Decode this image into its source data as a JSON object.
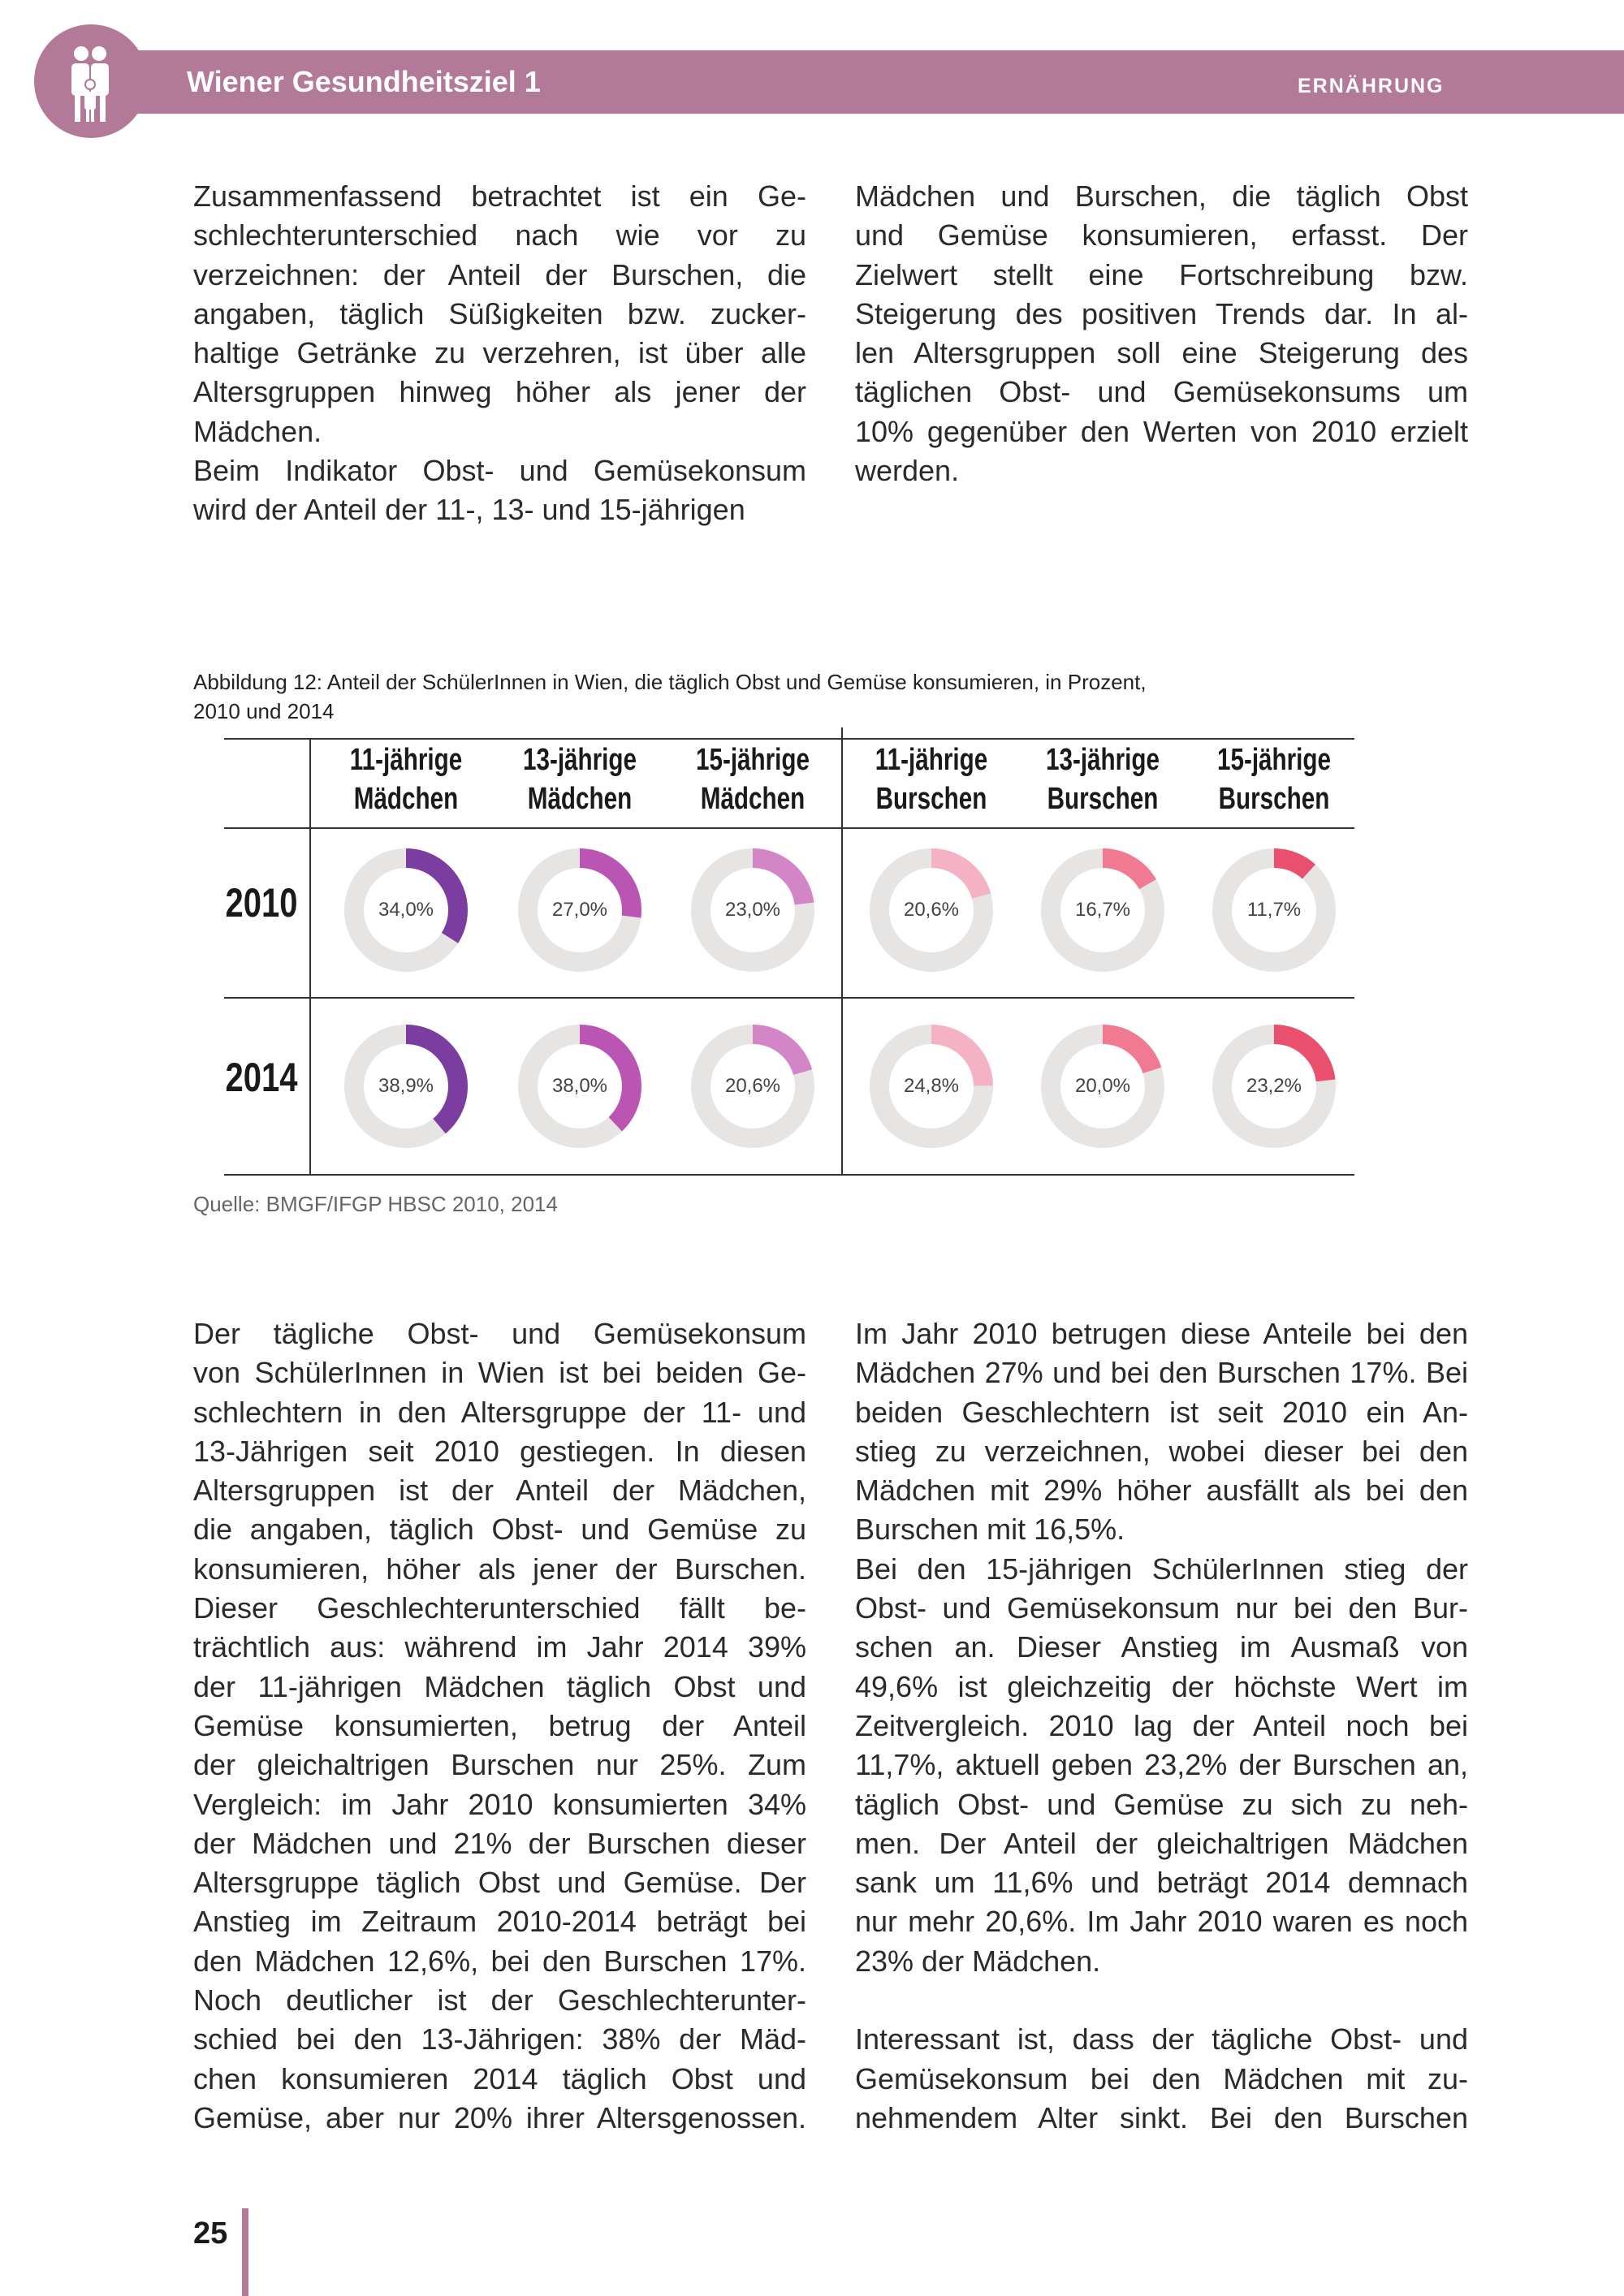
{
  "header": {
    "title": "Wiener Gesundheitsziel 1",
    "section": "ERNÄHRUNG",
    "logo_icon": "family-icon",
    "color": "#b27a98"
  },
  "top_left": [
    {
      "text": "Zusammenfassend betrachtet ist ein Ge-"
    },
    {
      "text": "schlechterunterschied nach wie vor zu"
    },
    {
      "text": "verzeichnen: der Anteil der Burschen, die"
    },
    {
      "text": "angaben, täglich Süßigkeiten bzw. zucker-"
    },
    {
      "text": "haltige Getränke zu verzehren, ist über alle"
    },
    {
      "text": "Altersgruppen hinweg höher als jener der"
    },
    {
      "text": "Mädchen.",
      "end": true
    },
    {
      "text": "Beim Indikator Obst- und Gemüsekonsum"
    },
    {
      "text": "wird der Anteil der 11-, 13- und 15-jährigen",
      "end": true
    }
  ],
  "top_right": [
    {
      "text": "Mädchen und Burschen, die täglich Obst"
    },
    {
      "text": "und Gemüse konsumieren, erfasst. Der"
    },
    {
      "text": "Zielwert stellt eine Fortschreibung bzw."
    },
    {
      "text": "Steigerung des positiven Trends dar. In al-"
    },
    {
      "text": "len Altersgruppen soll eine Steigerung des"
    },
    {
      "text": "täglichen Obst- und Gemüsekonsums um"
    },
    {
      "text": "10% gegenüber den Werten von 2010 erzielt"
    },
    {
      "text": "werden.",
      "end": true
    }
  ],
  "figure": {
    "caption_line1": "Abbildung 12: Anteil der SchülerInnen  in Wien, die täglich Obst und Gemüse konsumieren, in Prozent,",
    "caption_line2": "2010 und 2014",
    "source": "Quelle: BMGF/IFGP HBSC 2010, 2014"
  },
  "chart_data": {
    "type": "donut-table",
    "title": "Anteil der SchülerInnen in Wien, die täglich Obst und Gemüse konsumieren, in Prozent, 2010 und 2014",
    "columns": [
      {
        "line1": "11-jährige",
        "line2": "Mädchen",
        "color": "#7b3d9f"
      },
      {
        "line1": "13-jährige",
        "line2": "Mädchen",
        "color": "#bb55b4"
      },
      {
        "line1": "15-jährige",
        "line2": "Mädchen",
        "color": "#d385c7"
      },
      {
        "line1": "11-jährige",
        "line2": "Burschen",
        "color": "#f6b2c5"
      },
      {
        "line1": "13-jährige",
        "line2": "Burschen",
        "color": "#f07a92"
      },
      {
        "line1": "15-jährige",
        "line2": "Burschen",
        "color": "#e8506d"
      }
    ],
    "rows": [
      {
        "year": "2010",
        "values": [
          34.0,
          27.0,
          23.0,
          20.6,
          16.7,
          11.7
        ],
        "labels": [
          "34,0%",
          "27,0%",
          "23,0%",
          "20,6%",
          "16,7%",
          "11,7%"
        ]
      },
      {
        "year": "2014",
        "values": [
          38.9,
          38.0,
          20.6,
          24.8,
          20.0,
          23.2
        ],
        "labels": [
          "38,9%",
          "38,0%",
          "20,6%",
          "24,8%",
          "20,0%",
          "23,2%"
        ]
      }
    ],
    "track_color": "#e6e5e4",
    "max": 100
  },
  "bottom_left": [
    {
      "text": "Der tägliche Obst- und Gemüsekonsum"
    },
    {
      "text": "von SchülerInnen in Wien ist bei beiden Ge-"
    },
    {
      "text": "schlechtern in den Altersgruppe der 11- und"
    },
    {
      "text": "13-Jährigen seit 2010 gestiegen. In diesen"
    },
    {
      "text": "Altersgruppen ist der Anteil der Mädchen,"
    },
    {
      "text": "die angaben, täglich Obst- und Gemüse zu"
    },
    {
      "text": "konsumieren, höher als jener der Burschen."
    },
    {
      "text": "Dieser Geschlechterunterschied fällt be-"
    },
    {
      "text": "trächtlich aus: während im Jahr 2014 39%"
    },
    {
      "text": "der 11-jährigen Mädchen täglich Obst und"
    },
    {
      "text": "Gemüse konsumierten, betrug der Anteil"
    },
    {
      "text": "der gleichaltrigen Burschen nur 25%. Zum"
    },
    {
      "text": "Vergleich: im Jahr 2010 konsumierten 34%"
    },
    {
      "text": "der Mädchen und 21% der Burschen dieser"
    },
    {
      "text": "Altersgruppe täglich Obst und Gemüse. Der"
    },
    {
      "text": "Anstieg im Zeitraum 2010-2014 beträgt bei"
    },
    {
      "text": "den Mädchen 12,6%, bei den Burschen 17%."
    },
    {
      "text": "Noch deutlicher ist der Geschlechterunter-"
    },
    {
      "text": "schied bei den 13-Jährigen: 38% der Mäd-"
    },
    {
      "text": "chen konsumieren 2014 täglich Obst und"
    },
    {
      "text": "Gemüse, aber nur 20% ihrer Altersgenossen."
    }
  ],
  "bottom_right": [
    {
      "text": "Im Jahr 2010 betrugen diese Anteile bei den"
    },
    {
      "text": "Mädchen 27% und bei den Burschen 17%. Bei"
    },
    {
      "text": "beiden Geschlechtern ist seit 2010 ein An-"
    },
    {
      "text": "stieg zu verzeichnen, wobei dieser bei den"
    },
    {
      "text": "Mädchen mit 29% höher ausfällt als bei den"
    },
    {
      "text": "Burschen mit 16,5%.",
      "end": true
    },
    {
      "text": "Bei den 15-jährigen SchülerInnen stieg der"
    },
    {
      "text": "Obst- und Gemüsekonsum nur bei den Bur-"
    },
    {
      "text": "schen an. Dieser Anstieg im Ausmaß von"
    },
    {
      "text": "49,6% ist gleichzeitig der höchste Wert im"
    },
    {
      "text": "Zeitvergleich. 2010 lag der Anteil noch bei"
    },
    {
      "text": "11,7%, aktuell geben 23,2% der Burschen an,"
    },
    {
      "text": "täglich Obst- und Gemüse zu sich zu neh-"
    },
    {
      "text": "men. Der Anteil der gleichaltrigen Mädchen"
    },
    {
      "text": "sank um 11,6% und beträgt 2014 demnach"
    },
    {
      "text": "nur mehr 20,6%. Im Jahr 2010 waren es noch"
    },
    {
      "text": "23% der Mädchen.",
      "end": true
    },
    {
      "text": "",
      "end": true
    },
    {
      "text": "Interessant ist, dass der tägliche Obst- und"
    },
    {
      "text": "Gemüsekonsum bei den Mädchen mit zu-"
    },
    {
      "text": "nehmendem Alter sinkt. Bei den Burschen"
    }
  ],
  "footer": {
    "page_number": "25"
  }
}
